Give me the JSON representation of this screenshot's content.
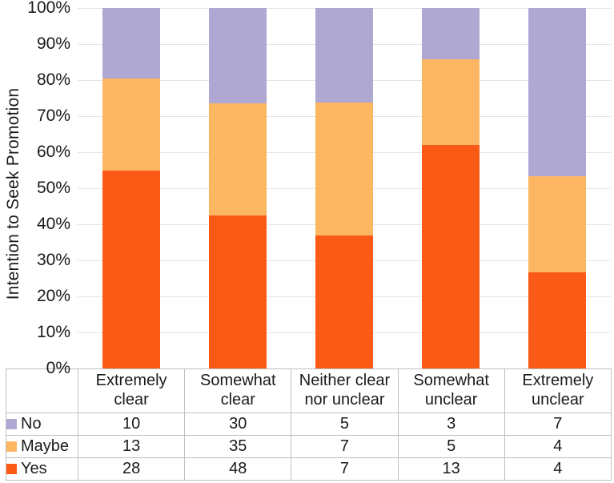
{
  "chart_data": {
    "type": "bar",
    "variant": "100%-stacked-column",
    "title": "",
    "xlabel": "",
    "ylabel": "Intention to Seek Promotion",
    "ylim": [
      0,
      100
    ],
    "grid": "horizontal",
    "legend_position": "table-left",
    "categories": [
      "Extremely clear",
      "Somewhat clear",
      "Neither clear nor unclear",
      "Somewhat unclear",
      "Extremely unclear"
    ],
    "series": [
      {
        "name": "No",
        "color": "#afa8d2",
        "values": [
          10,
          30,
          5,
          3,
          7
        ]
      },
      {
        "name": "Maybe",
        "color": "#fdb763",
        "values": [
          13,
          35,
          7,
          5,
          4
        ]
      },
      {
        "name": "Yes",
        "color": "#fa5a15",
        "values": [
          28,
          48,
          7,
          13,
          4
        ]
      }
    ],
    "y_ticks": [
      "0%",
      "10%",
      "20%",
      "30%",
      "40%",
      "50%",
      "60%",
      "70%",
      "80%",
      "90%",
      "100%"
    ]
  },
  "colors": {
    "gridline": "#e4e4e4",
    "table_border": "#bfbfbf",
    "text": "#1a1a1a",
    "background": "#ffffff"
  }
}
